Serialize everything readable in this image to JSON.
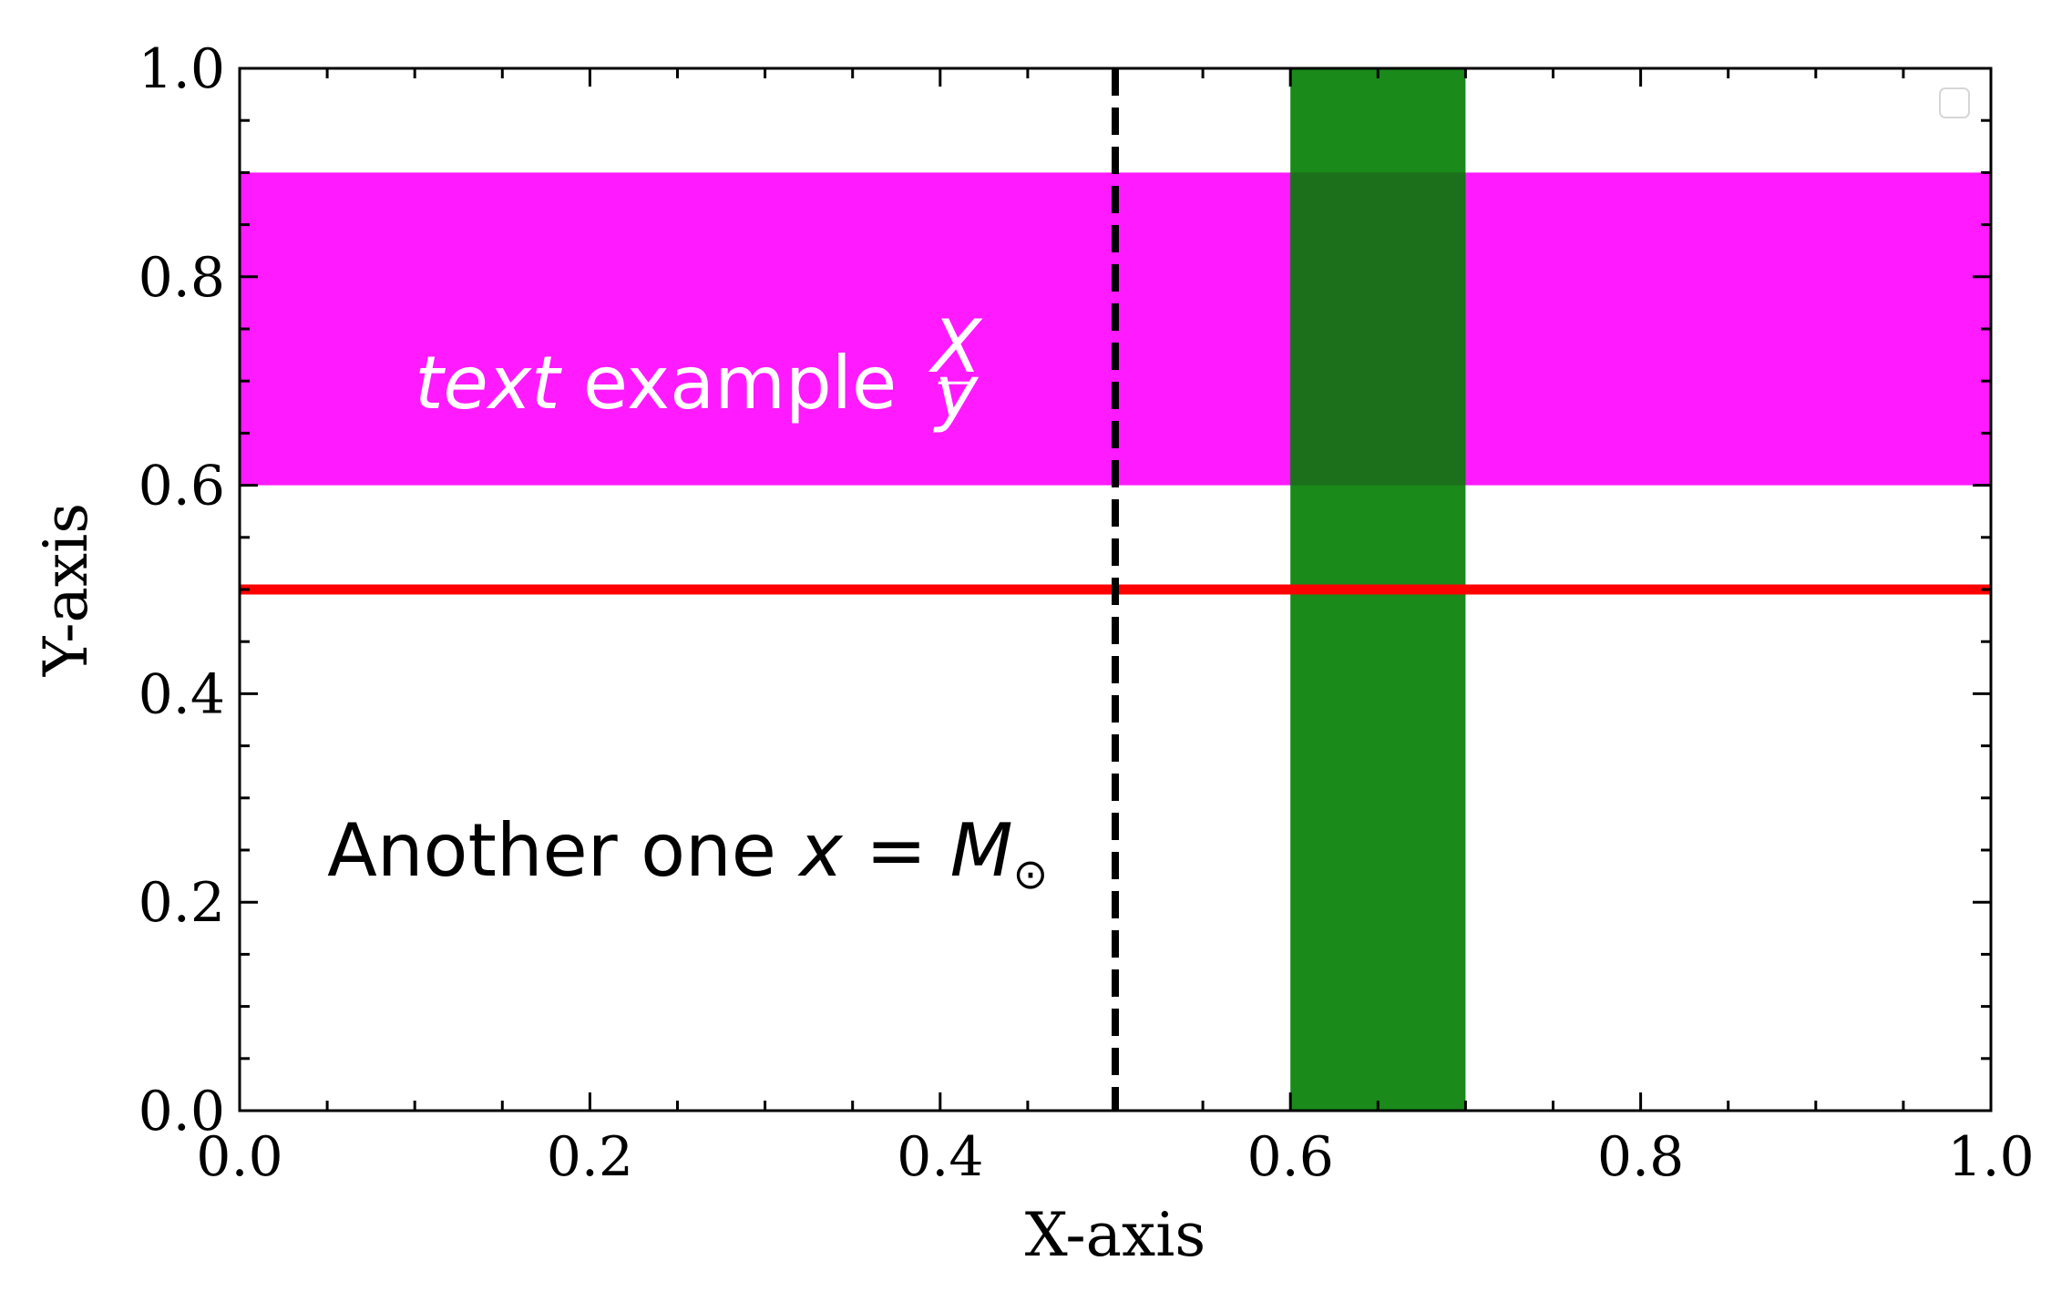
{
  "chart_data": {
    "type": "line",
    "xlabel": "X-axis",
    "ylabel": "Y-axis",
    "xlim": [
      0.0,
      1.0
    ],
    "ylim": [
      0.0,
      1.0
    ],
    "x_ticks": [
      "0.0",
      "0.2",
      "0.4",
      "0.6",
      "0.8",
      "1.0"
    ],
    "y_ticks": [
      "0.0",
      "0.2",
      "0.4",
      "0.6",
      "0.8",
      "1.0"
    ],
    "x_tick_values": [
      0.0,
      0.2,
      0.4,
      0.6,
      0.8,
      1.0
    ],
    "y_tick_values": [
      0.0,
      0.2,
      0.4,
      0.6,
      0.8,
      1.0
    ],
    "minor_tick_step": 0.05,
    "grid": false,
    "legend": {
      "placement": "top-right",
      "entries": []
    },
    "horizontal_span": {
      "y0": 0.6,
      "y1": 0.9,
      "color": "#ff1aff"
    },
    "vertical_span": {
      "x0": 0.6,
      "x1": 0.7,
      "color": "#1a8a1a",
      "overlap_color": "#1c701c"
    },
    "horizontal_line": {
      "y": 0.5,
      "color": "#ff0000",
      "style": "solid"
    },
    "vertical_line": {
      "x": 0.5,
      "color": "#000000",
      "style": "dashed"
    },
    "annotations": [
      {
        "x": 0.1,
        "y": 0.7,
        "italic": "text",
        "text": " example ",
        "frac_num": "X",
        "frac_den": "y",
        "color": "#ffffff"
      },
      {
        "x": 0.05,
        "y": 0.25,
        "text": "Another one ",
        "math_var": "x",
        "math_eq": " = ",
        "math_sym": "M",
        "math_sub": "⊙",
        "color": "#000000"
      }
    ]
  }
}
